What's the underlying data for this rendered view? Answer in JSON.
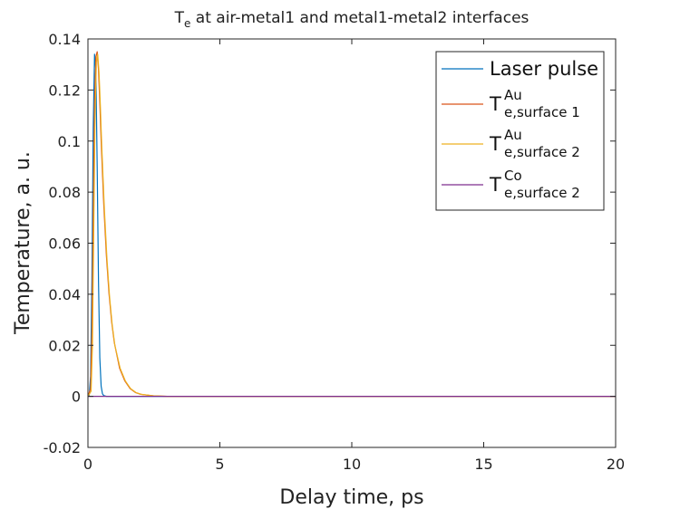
{
  "chart_data": {
    "type": "line",
    "title": {
      "main": "T",
      "subscript": "e",
      "rest": " at air-metal1 and metal1-metal2 interfaces"
    },
    "xlabel": "Delay time, ps",
    "ylabel": "Temperature, a. u.",
    "xlim": [
      0,
      20
    ],
    "ylim": [
      -0.02,
      0.14
    ],
    "xticks": [
      0,
      5,
      10,
      15,
      20
    ],
    "xtick_labels": [
      "0",
      "5",
      "10",
      "15",
      "20"
    ],
    "yticks": [
      -0.02,
      0,
      0.02,
      0.04,
      0.06,
      0.08,
      0.1,
      0.12,
      0.14
    ],
    "ytick_labels": [
      "-0.02",
      "0",
      "0.02",
      "0.04",
      "0.06",
      "0.08",
      "0.1",
      "0.12",
      "0.14"
    ],
    "grid": false,
    "legend_position": "top-right",
    "series": [
      {
        "name": "Laser pulse",
        "legend": {
          "base": "Laser pulse",
          "sup": "",
          "sub": ""
        },
        "color": "#0072BD",
        "x": [
          0,
          0.05,
          0.1,
          0.15,
          0.2,
          0.25,
          0.3,
          0.35,
          0.4,
          0.45,
          0.5,
          0.55,
          0.6,
          0.7,
          0.8,
          1.0,
          1.5,
          20
        ],
        "y": [
          0,
          0.0005,
          0.008,
          0.045,
          0.105,
          0.134,
          0.128,
          0.09,
          0.045,
          0.015,
          0.004,
          0.001,
          0.0003,
          0,
          0,
          0,
          0,
          0
        ]
      },
      {
        "name": "T e,surface 1 Au",
        "legend": {
          "base": "T",
          "sup": "Au",
          "sub": "e,surface 1"
        },
        "color": "#D95319",
        "x": [
          0,
          0.1,
          0.15,
          0.2,
          0.25,
          0.3,
          0.35,
          0.4,
          0.45,
          0.5,
          0.6,
          0.7,
          0.8,
          0.9,
          1.0,
          1.2,
          1.4,
          1.6,
          1.8,
          2.0,
          2.5,
          3,
          20
        ],
        "y": [
          0,
          0.003,
          0.025,
          0.07,
          0.115,
          0.133,
          0.135,
          0.128,
          0.115,
          0.1,
          0.075,
          0.055,
          0.04,
          0.029,
          0.021,
          0.011,
          0.006,
          0.003,
          0.0015,
          0.0008,
          0.0002,
          0,
          0
        ]
      },
      {
        "name": "T e,surface 2 Au",
        "legend": {
          "base": "T",
          "sup": "Au",
          "sub": "e,surface 2"
        },
        "color": "#EDB120",
        "x": [
          0,
          0.12,
          0.17,
          0.22,
          0.27,
          0.32,
          0.37,
          0.42,
          0.47,
          0.52,
          0.62,
          0.72,
          0.82,
          0.92,
          1.02,
          1.22,
          1.42,
          1.62,
          1.82,
          2.02,
          2.5,
          3,
          20
        ],
        "y": [
          0,
          0.002,
          0.02,
          0.065,
          0.11,
          0.131,
          0.134,
          0.127,
          0.114,
          0.099,
          0.074,
          0.054,
          0.039,
          0.028,
          0.02,
          0.011,
          0.006,
          0.003,
          0.0015,
          0.0008,
          0.0002,
          0,
          0
        ]
      },
      {
        "name": "T e,surface 2 Co",
        "legend": {
          "base": "T",
          "sup": "Co",
          "sub": "e,surface 2"
        },
        "color": "#7E2F8E",
        "x": [
          0,
          0.5,
          1.0,
          1.5,
          2.0,
          20
        ],
        "y": [
          0,
          0,
          0,
          0,
          0,
          0
        ]
      }
    ]
  }
}
